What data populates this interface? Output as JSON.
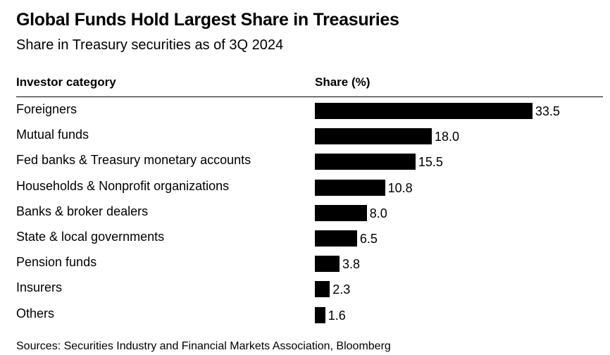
{
  "chart_data": {
    "type": "bar",
    "orientation": "horizontal",
    "title": "Global Funds Hold Largest Share in Treasuries",
    "subtitle": "Share in Treasury securities as of 3Q 2024",
    "column_headers": {
      "category": "Investor category",
      "value": "Share (%)"
    },
    "categories": [
      "Foreigners",
      "Mutual funds",
      "Fed banks & Treasury monetary accounts",
      "Households & Nonprofit organizations",
      "Banks & broker dealers",
      "State & local governments",
      "Pension funds",
      "Insurers",
      "Others"
    ],
    "values": [
      33.5,
      18.0,
      15.5,
      10.8,
      8.0,
      6.5,
      3.8,
      2.3,
      1.6
    ],
    "value_labels": [
      "33.5",
      "18.0",
      "15.5",
      "10.8",
      "8.0",
      "6.5",
      "3.8",
      "2.3",
      "1.6"
    ],
    "bar_color": "#000000",
    "source": "Sources: Securities Industry and Financial Markets Association, Bloomberg"
  }
}
